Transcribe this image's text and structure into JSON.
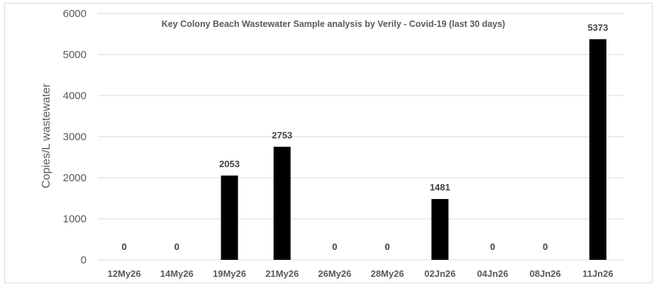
{
  "chart_data": {
    "type": "bar",
    "title": "Key Colony Beach Wastewater Sample analysis by Verily - Covid-19 (last 30 days)",
    "xlabel": "",
    "ylabel": "Copies/L wastewater",
    "ylim": [
      0,
      6000
    ],
    "yticks": [
      0,
      1000,
      2000,
      3000,
      4000,
      5000,
      6000
    ],
    "grid": true,
    "legend": "none",
    "categories": [
      "12My26",
      "14My26",
      "19My26",
      "21My26",
      "26My26",
      "28My26",
      "02Jn26",
      "04Jn26",
      "08Jn26",
      "11Jn26"
    ],
    "values": [
      0,
      0,
      2053,
      2753,
      0,
      0,
      1481,
      0,
      0,
      5373
    ],
    "bar_color": "#000000",
    "grid_color": "#d9d9d9"
  }
}
